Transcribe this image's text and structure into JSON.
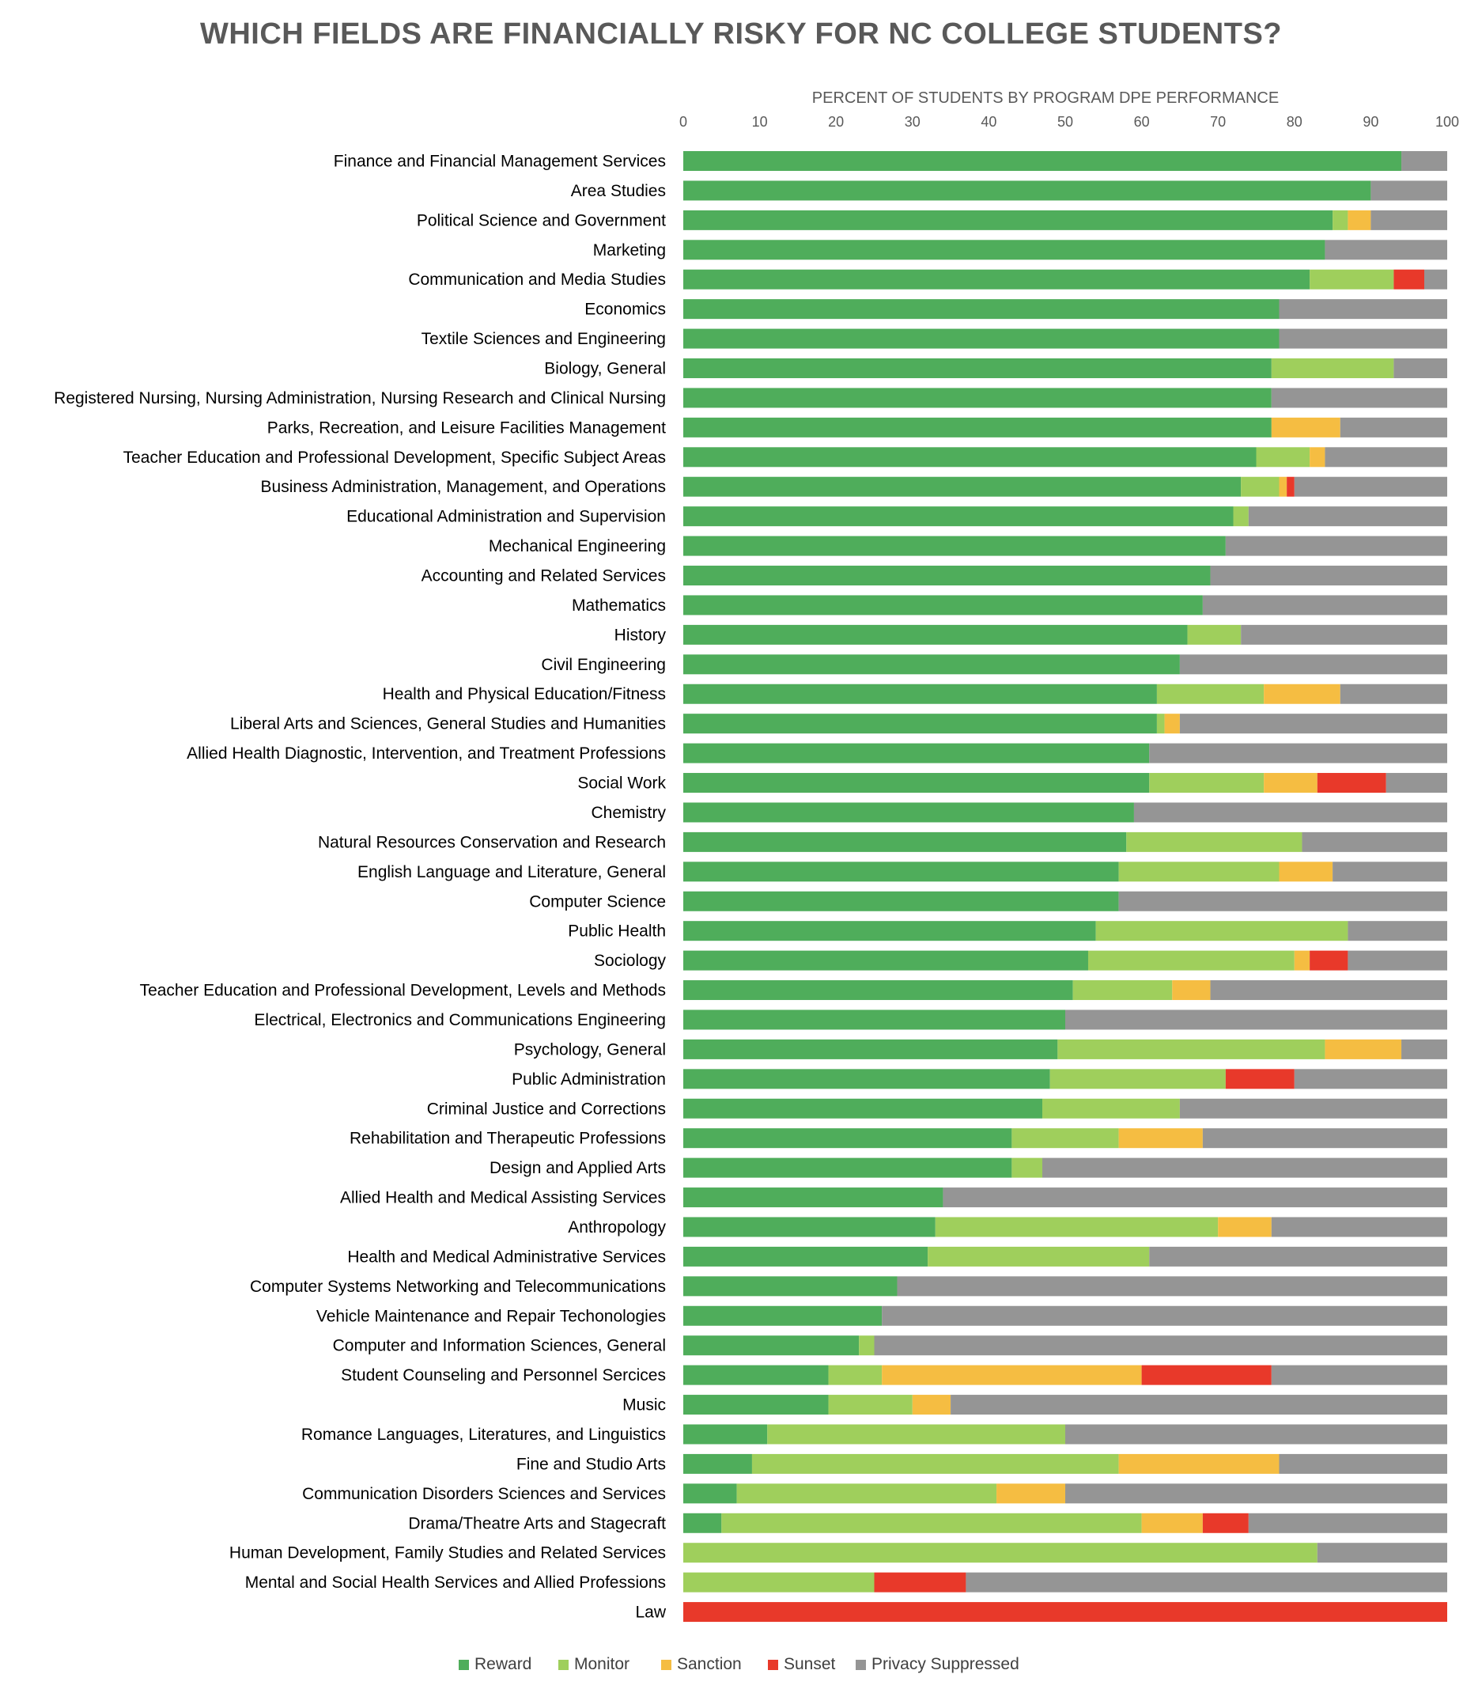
{
  "chart_data": {
    "type": "bar",
    "orientation": "horizontal",
    "stacked": true,
    "title": "WHICH FIELDS ARE FINANCIALLY RISKY FOR NC COLLEGE STUDENTS?",
    "xlabel": "PERCENT OF STUDENTS BY PROGRAM DPE PERFORMANCE",
    "ylabel": "",
    "xlim": [
      0,
      100
    ],
    "xticks": [
      0,
      10,
      20,
      30,
      40,
      50,
      60,
      70,
      80,
      90,
      100
    ],
    "x_axis_position": "top",
    "grid": false,
    "legend_position": "bottom",
    "categories": [
      "Finance and Financial Management Services",
      "Area Studies",
      "Political Science and Government",
      "Marketing",
      "Communication and Media Studies",
      "Economics",
      "Textile Sciences and Engineering",
      "Biology, General",
      "Registered Nursing, Nursing Administration, Nursing Research and Clinical Nursing",
      "Parks, Recreation, and Leisure Facilities Management",
      "Teacher Education and Professional Development, Specific Subject Areas",
      "Business Administration, Management, and Operations",
      "Educational Administration and Supervision",
      "Mechanical Engineering",
      "Accounting and Related Services",
      "Mathematics",
      "History",
      "Civil Engineering",
      "Health and Physical Education/Fitness",
      "Liberal Arts and Sciences, General Studies and Humanities",
      "Allied Health Diagnostic, Intervention, and Treatment Professions",
      "Social Work",
      "Chemistry",
      "Natural Resources Conservation and Research",
      "English Language and Literature, General",
      "Computer Science",
      "Public Health",
      "Sociology",
      "Teacher Education and Professional Development, Levels and Methods",
      "Electrical, Electronics and Communications Engineering",
      "Psychology, General",
      "Public Administration",
      "Criminal Justice and Corrections",
      "Rehabilitation and Therapeutic Professions",
      "Design and Applied Arts",
      "Allied Health and Medical Assisting Services",
      "Anthropology",
      "Health and Medical Administrative Services",
      "Computer Systems Networking and Telecommunications",
      "Vehicle Maintenance and Repair Techonologies",
      "Computer and Information Sciences, General",
      "Student Counseling and Personnel Sercices",
      "Music",
      "Romance Languages, Literatures, and Linguistics",
      "Fine and Studio Arts",
      "Communication Disorders Sciences and Services",
      "Drama/Theatre Arts and Stagecraft",
      "Human Development, Family Studies and Related Services",
      "Mental and Social Health Services and Allied Professions",
      "Law"
    ],
    "series": [
      {
        "name": "Reward",
        "color": "#4fad5b",
        "values": [
          94,
          90,
          85,
          84,
          82,
          78,
          78,
          77,
          77,
          77,
          75,
          73,
          72,
          71,
          69,
          68,
          66,
          65,
          62,
          62,
          61,
          61,
          59,
          58,
          57,
          57,
          54,
          53,
          51,
          50,
          49,
          48,
          47,
          43,
          43,
          34,
          33,
          32,
          28,
          26,
          23,
          19,
          19,
          11,
          9,
          7,
          5,
          0,
          0,
          0
        ]
      },
      {
        "name": "Monitor",
        "color": "#9fcf5c",
        "values": [
          0,
          0,
          2,
          0,
          11,
          0,
          0,
          16,
          0,
          0,
          7,
          5,
          2,
          0,
          0,
          0,
          7,
          0,
          14,
          1,
          0,
          15,
          0,
          23,
          21,
          0,
          33,
          27,
          13,
          0,
          35,
          23,
          18,
          14,
          4,
          0,
          37,
          29,
          0,
          0,
          2,
          7,
          11,
          39,
          48,
          34,
          55,
          83,
          25,
          0
        ]
      },
      {
        "name": "Sanction",
        "color": "#f5bd42",
        "values": [
          0,
          0,
          3,
          0,
          0,
          0,
          0,
          0,
          0,
          9,
          2,
          1,
          0,
          0,
          0,
          0,
          0,
          0,
          10,
          2,
          0,
          7,
          0,
          0,
          7,
          0,
          0,
          2,
          5,
          0,
          10,
          0,
          0,
          11,
          0,
          0,
          7,
          0,
          0,
          0,
          0,
          34,
          5,
          0,
          21,
          9,
          8,
          0,
          0,
          0
        ]
      },
      {
        "name": "Sunset",
        "color": "#e8392a",
        "values": [
          0,
          0,
          0,
          0,
          4,
          0,
          0,
          0,
          0,
          0,
          0,
          1,
          0,
          0,
          0,
          0,
          0,
          0,
          0,
          0,
          0,
          9,
          0,
          0,
          0,
          0,
          0,
          5,
          0,
          0,
          0,
          9,
          0,
          0,
          0,
          0,
          0,
          0,
          0,
          0,
          0,
          17,
          0,
          0,
          0,
          0,
          6,
          0,
          12,
          100
        ]
      },
      {
        "name": "Privacy Suppressed",
        "color": "#959595",
        "values": [
          6,
          10,
          10,
          16,
          3,
          22,
          22,
          7,
          23,
          14,
          16,
          20,
          26,
          29,
          31,
          32,
          27,
          35,
          14,
          35,
          39,
          8,
          41,
          19,
          15,
          43,
          13,
          13,
          31,
          50,
          6,
          20,
          35,
          32,
          53,
          66,
          23,
          39,
          72,
          74,
          75,
          23,
          65,
          50,
          22,
          50,
          26,
          17,
          63,
          0
        ]
      }
    ]
  }
}
